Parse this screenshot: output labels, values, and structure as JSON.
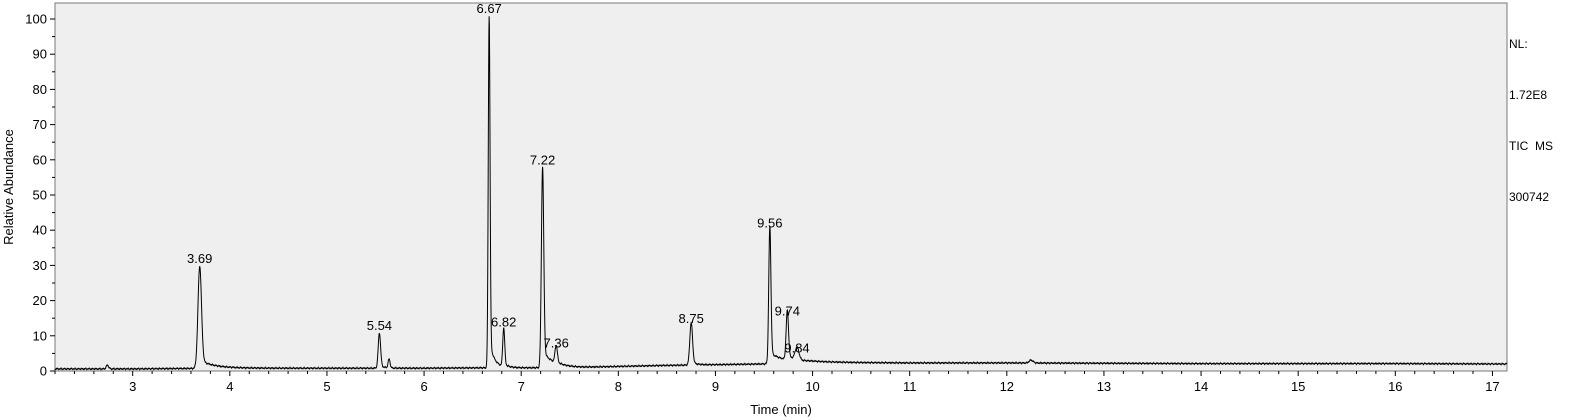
{
  "chart_data": {
    "type": "line",
    "title": "",
    "xlabel": "Time (min)",
    "ylabel": "Relative Abundance",
    "xlim": [
      2.2,
      17.15
    ],
    "ylim": [
      0,
      100
    ],
    "xticks": [
      3,
      4,
      5,
      6,
      7,
      8,
      9,
      10,
      11,
      12,
      13,
      14,
      15,
      16,
      17
    ],
    "yticks": [
      0,
      10,
      20,
      30,
      40,
      50,
      60,
      70,
      80,
      90,
      100
    ],
    "grid": false,
    "series": [
      {
        "name": "TIC MS 300742",
        "color": "#000000"
      }
    ],
    "baseline": [
      [
        2.2,
        0.6
      ],
      [
        3.0,
        0.6
      ],
      [
        4.0,
        0.8
      ],
      [
        5.0,
        0.8
      ],
      [
        6.0,
        0.8
      ],
      [
        6.6,
        0.9
      ],
      [
        7.0,
        0.9
      ],
      [
        7.6,
        1.0
      ],
      [
        8.0,
        1.3
      ],
      [
        8.5,
        1.6
      ],
      [
        9.0,
        1.8
      ],
      [
        9.5,
        2.0
      ],
      [
        10.0,
        2.6
      ],
      [
        10.5,
        2.4
      ],
      [
        11.0,
        2.3
      ],
      [
        12.0,
        2.3
      ],
      [
        13.0,
        2.2
      ],
      [
        14.0,
        2.1
      ],
      [
        15.0,
        2.1
      ],
      [
        16.0,
        2.1
      ],
      [
        17.15,
        2.0
      ]
    ],
    "peaks": [
      {
        "rt": 2.74,
        "height": 1.1,
        "width": 0.012,
        "tail": 0
      },
      {
        "rt": 3.69,
        "height": 29,
        "width": 0.018,
        "tail": 0.15
      },
      {
        "rt": 5.54,
        "height": 10,
        "width": 0.012,
        "tail": 0.05
      },
      {
        "rt": 5.64,
        "height": 2.5,
        "width": 0.01,
        "tail": 0
      },
      {
        "rt": 6.67,
        "height": 100,
        "width": 0.009,
        "tail": 0.05
      },
      {
        "rt": 6.82,
        "height": 11,
        "width": 0.01,
        "tail": 0.05
      },
      {
        "rt": 7.22,
        "height": 57,
        "width": 0.012,
        "tail": 0.12
      },
      {
        "rt": 7.36,
        "height": 5,
        "width": 0.012,
        "tail": 0.05
      },
      {
        "rt": 8.75,
        "height": 12,
        "width": 0.014,
        "tail": 0.05
      },
      {
        "rt": 9.56,
        "height": 39,
        "width": 0.011,
        "tail": 0.15
      },
      {
        "rt": 9.74,
        "height": 14,
        "width": 0.012,
        "tail": 0.1
      },
      {
        "rt": 9.84,
        "height": 3.5,
        "width": 0.02,
        "tail": 0
      },
      {
        "rt": 12.25,
        "height": 0.8,
        "width": 0.02,
        "tail": 0
      }
    ],
    "annotations": [
      {
        "label": "3.69",
        "x": 3.69,
        "y": 29
      },
      {
        "label": "5.54",
        "x": 5.54,
        "y": 10
      },
      {
        "label": "6.67",
        "x": 6.67,
        "y": 100
      },
      {
        "label": "6.82",
        "x": 6.82,
        "y": 11
      },
      {
        "label": "7.22",
        "x": 7.22,
        "y": 57
      },
      {
        "label": "7.36",
        "x": 7.36,
        "y": 5
      },
      {
        "label": "8.75",
        "x": 8.75,
        "y": 12
      },
      {
        "label": "9.56",
        "x": 9.56,
        "y": 39
      },
      {
        "label": "9.74",
        "x": 9.74,
        "y": 14
      },
      {
        "label": "9.84",
        "x": 9.84,
        "y": 3.5
      }
    ]
  },
  "info": {
    "nl_label": "NL:",
    "nl_value": "1.72E8",
    "scan_type": "TIC  MS",
    "sample": "300742"
  }
}
